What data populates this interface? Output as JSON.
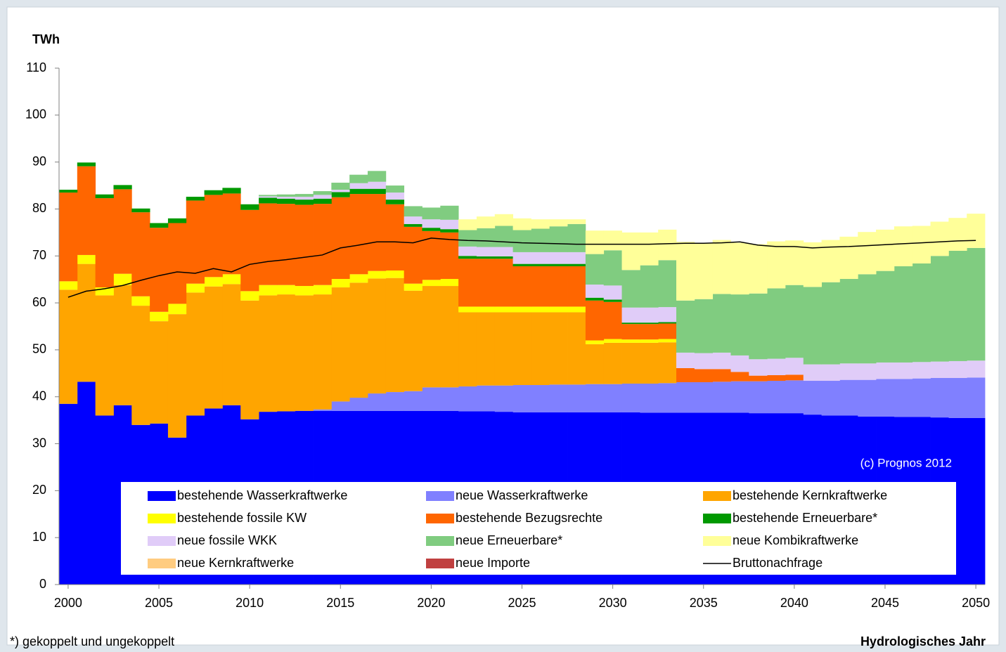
{
  "chart_data": {
    "type": "bar",
    "stacked": true,
    "y_label": "TWh",
    "x_label": "Hydrologisches Jahr",
    "note": "*) gekoppelt und ungekoppelt",
    "annotation": "(c) Prognos 2012",
    "x": [
      2000,
      2001,
      2002,
      2003,
      2004,
      2005,
      2006,
      2007,
      2008,
      2009,
      2010,
      2011,
      2012,
      2013,
      2014,
      2015,
      2016,
      2017,
      2018,
      2019,
      2020,
      2021,
      2022,
      2023,
      2024,
      2025,
      2026,
      2027,
      2028,
      2029,
      2030,
      2031,
      2032,
      2033,
      2034,
      2035,
      2036,
      2037,
      2038,
      2039,
      2040,
      2041,
      2042,
      2043,
      2044,
      2045,
      2046,
      2047,
      2048,
      2049,
      2050
    ],
    "xlim": [
      1999.5,
      2050.5
    ],
    "xticks": [
      2000,
      2005,
      2010,
      2015,
      2020,
      2025,
      2030,
      2035,
      2040,
      2045,
      2050
    ],
    "ylim": [
      0,
      110
    ],
    "yticks": [
      0,
      10,
      20,
      30,
      40,
      50,
      60,
      70,
      80,
      90,
      100,
      110
    ],
    "grid": false,
    "series": [
      {
        "name": "bestehende Wasserkraftwerke",
        "type": "bar",
        "color": "#0000ff",
        "values": [
          38.5,
          43.2,
          36,
          38.2,
          34,
          34.3,
          31.3,
          36,
          37.5,
          38.2,
          35.2,
          36.8,
          36.9,
          37,
          37,
          37,
          37,
          37,
          37,
          37,
          37,
          37,
          36.9,
          36.9,
          36.8,
          36.7,
          36.7,
          36.7,
          36.7,
          36.7,
          36.7,
          36.7,
          36.6,
          36.6,
          36.6,
          36.6,
          36.6,
          36.6,
          36.5,
          36.5,
          36.5,
          36.2,
          36,
          36,
          35.8,
          35.8,
          35.7,
          35.7,
          35.6,
          35.5,
          35.5
        ]
      },
      {
        "name": "neue Wasserkraftwerke",
        "type": "bar",
        "color": "#8080ff",
        "values": [
          0,
          0,
          0,
          0,
          0,
          0,
          0,
          0,
          0,
          0,
          0,
          0,
          0,
          0,
          0.3,
          2,
          2.8,
          3.7,
          4,
          4.2,
          5,
          5,
          5.3,
          5.5,
          5.6,
          5.8,
          5.8,
          5.9,
          5.9,
          6,
          6,
          6.1,
          6.2,
          6.3,
          6.5,
          6.5,
          6.6,
          6.7,
          6.8,
          6.9,
          7,
          7.2,
          7.4,
          7.6,
          7.8,
          8,
          8.1,
          8.2,
          8.4,
          8.5,
          8.6
        ]
      },
      {
        "name": "bestehende Kernkraftwerke",
        "type": "bar",
        "color": "#ffa500",
        "values": [
          24.3,
          25.1,
          25.6,
          25.6,
          25.4,
          21.8,
          26.3,
          26.2,
          26,
          25.8,
          25.3,
          24.8,
          24.9,
          24.6,
          24.5,
          24.3,
          24.5,
          24.5,
          24.3,
          21.4,
          21.6,
          21.6,
          15.8,
          15.6,
          15.6,
          15.5,
          15.5,
          15.4,
          15.4,
          8.5,
          8.8,
          8.7,
          8.7,
          8.7,
          0,
          0,
          0,
          0,
          0,
          0,
          0,
          0,
          0,
          0,
          0,
          0,
          0,
          0,
          0,
          0,
          0
        ]
      },
      {
        "name": "bestehende fossile KW",
        "type": "bar",
        "color": "#ffff00",
        "values": [
          1.8,
          1.9,
          1.7,
          2.4,
          2,
          2,
          2.2,
          1.9,
          2,
          2.1,
          2,
          2.2,
          2,
          2,
          2,
          1.8,
          1.8,
          1.6,
          1.6,
          1.5,
          1.3,
          1.5,
          1.2,
          1.2,
          1.2,
          1.2,
          1.2,
          1.2,
          1.2,
          0.8,
          0.8,
          0.7,
          0.7,
          0.7,
          0,
          0,
          0,
          0,
          0,
          0,
          0,
          0,
          0,
          0,
          0,
          0,
          0,
          0,
          0,
          0,
          0
        ]
      },
      {
        "name": "bestehende Bezugsrechte",
        "type": "bar",
        "color": "#ff6600",
        "values": [
          18.9,
          18.9,
          19,
          18,
          17.9,
          17.9,
          17.2,
          17.7,
          17.5,
          17.2,
          17.3,
          17.4,
          17.3,
          17.3,
          17.3,
          17.4,
          17.1,
          16.4,
          14.1,
          12.1,
          10.4,
          9.9,
          10.2,
          10.2,
          10.2,
          8.6,
          8.6,
          8.6,
          8.6,
          8.5,
          7.9,
          3.3,
          3.3,
          3.3,
          3,
          2.8,
          2.7,
          2,
          1.2,
          1.2,
          1.2,
          0,
          0,
          0,
          0,
          0,
          0,
          0,
          0,
          0,
          0
        ]
      },
      {
        "name": "bestehende Erneuerbare*",
        "type": "bar",
        "color": "#009900",
        "values": [
          0.6,
          0.8,
          0.8,
          0.9,
          0.8,
          1,
          1,
          0.8,
          1,
          1.2,
          1.2,
          1.2,
          1.1,
          1.1,
          1.1,
          1.1,
          1.1,
          1.1,
          1,
          0.6,
          0.7,
          0.7,
          0.6,
          0.5,
          0.5,
          0.5,
          0.5,
          0.5,
          0.5,
          0.6,
          0.5,
          0.3,
          0.3,
          0.3,
          0,
          0,
          0,
          0,
          0,
          0,
          0,
          0,
          0,
          0,
          0,
          0,
          0,
          0,
          0,
          0,
          0
        ]
      },
      {
        "name": "neue fossile WKK",
        "type": "bar",
        "color": "#e0ccf8",
        "values": [
          0,
          0,
          0,
          0,
          0,
          0,
          0,
          0,
          0,
          0,
          0,
          0.3,
          0.4,
          0.6,
          0.8,
          0.5,
          1.2,
          1.5,
          1.5,
          1.6,
          1.8,
          2,
          2,
          2,
          2,
          2.5,
          2.5,
          2.5,
          2.5,
          2.8,
          3,
          3.2,
          3.2,
          3.2,
          3.3,
          3.4,
          3.5,
          3.5,
          3.5,
          3.5,
          3.6,
          3.5,
          3.5,
          3.5,
          3.5,
          3.5,
          3.5,
          3.5,
          3.5,
          3.6,
          3.6
        ]
      },
      {
        "name": "neue Erneuerbare*",
        "type": "bar",
        "color": "#80cc80",
        "values": [
          0,
          0,
          0,
          0,
          0,
          0,
          0,
          0,
          0,
          0,
          0,
          0.3,
          0.5,
          0.6,
          0.8,
          1.5,
          1.8,
          2.3,
          1.5,
          2.2,
          2.5,
          3,
          3.5,
          4,
          4.5,
          4.7,
          5,
          5.5,
          6,
          6.5,
          7.5,
          8,
          9,
          10,
          11.1,
          11.5,
          12.5,
          13,
          14,
          15,
          15.5,
          16.5,
          17.5,
          18,
          19,
          19.5,
          20.5,
          21,
          22.5,
          23.5,
          24
        ]
      },
      {
        "name": "neue Kombikraftwerke",
        "type": "bar",
        "color": "#ffff99",
        "values": [
          0,
          0,
          0,
          0,
          0,
          0,
          0,
          0,
          0,
          0,
          0,
          0,
          0,
          0,
          0,
          0,
          0,
          0,
          0,
          0,
          0,
          0,
          2.3,
          2.5,
          2.5,
          2.5,
          2,
          1.5,
          1,
          5,
          4.2,
          8,
          7,
          6.5,
          12.5,
          12,
          11.5,
          11,
          10.5,
          10,
          9.5,
          9.5,
          9,
          9,
          9,
          8.8,
          8.5,
          8,
          7.3,
          7,
          7.3
        ]
      },
      {
        "name": "neue Kernkraftwerke",
        "type": "bar",
        "color": "#ffcc80",
        "values": [
          0,
          0,
          0,
          0,
          0,
          0,
          0,
          0,
          0,
          0,
          0,
          0,
          0,
          0,
          0,
          0,
          0,
          0,
          0,
          0,
          0,
          0,
          0,
          0,
          0,
          0,
          0,
          0,
          0,
          0,
          0,
          0,
          0,
          0,
          0,
          0,
          0,
          0,
          0,
          0,
          0,
          0,
          0,
          0,
          0,
          0,
          0,
          0,
          0,
          0,
          0
        ]
      },
      {
        "name": "neue Importe",
        "type": "bar",
        "color": "#c04040",
        "values": [
          0,
          0,
          0,
          0,
          0,
          0,
          0,
          0,
          0,
          0,
          0,
          0,
          0,
          0,
          0,
          0,
          0,
          0,
          0,
          0,
          0,
          0,
          0,
          0,
          0,
          0,
          0,
          0,
          0,
          0,
          0,
          0,
          0,
          0,
          0,
          0,
          0,
          0,
          0,
          0,
          0,
          0,
          0,
          0,
          0,
          0,
          0,
          0,
          0,
          0,
          0
        ]
      },
      {
        "name": "Bruttonachfrage",
        "type": "line",
        "color": "#000000",
        "values": [
          61.2,
          62.5,
          63,
          63.7,
          64.8,
          65.8,
          66.6,
          66.3,
          67.3,
          66.6,
          68.2,
          68.8,
          69.2,
          69.7,
          70.2,
          71.7,
          72.3,
          73,
          73,
          72.8,
          73.8,
          73.5,
          73.3,
          73.2,
          73,
          72.8,
          72.7,
          72.6,
          72.5,
          72.5,
          72.5,
          72.5,
          72.5,
          72.6,
          72.7,
          72.7,
          72.8,
          73,
          72.3,
          72,
          72,
          71.7,
          71.9,
          72,
          72.2,
          72.4,
          72.6,
          72.8,
          73,
          73.2,
          73.3
        ]
      }
    ]
  }
}
